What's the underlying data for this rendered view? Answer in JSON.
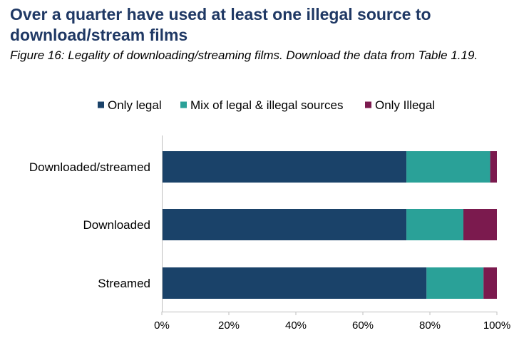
{
  "title": "Over a quarter have used at least one illegal source to download/stream films",
  "subtitle": "Figure 16: Legality of downloading/streaming films. Download the data from Table 1.19.",
  "chart_data": {
    "type": "bar",
    "orientation": "horizontal",
    "stacked": true,
    "categories": [
      "Downloaded/streamed",
      "Downloaded",
      "Streamed"
    ],
    "series": [
      {
        "name": "Only legal",
        "color": "#1a4269",
        "values": [
          73,
          73,
          79
        ]
      },
      {
        "name": "Mix of legal & illegal sources",
        "color": "#2aa198",
        "values": [
          25,
          17,
          17
        ]
      },
      {
        "name": "Only Illegal",
        "color": "#7b1a4e",
        "values": [
          2,
          10,
          4
        ]
      }
    ],
    "xlim": [
      0,
      100
    ],
    "xticks": [
      "0%",
      "20%",
      "40%",
      "60%",
      "80%",
      "100%"
    ],
    "xlabel": "",
    "ylabel": "",
    "grid": false,
    "legend_position": "top"
  }
}
